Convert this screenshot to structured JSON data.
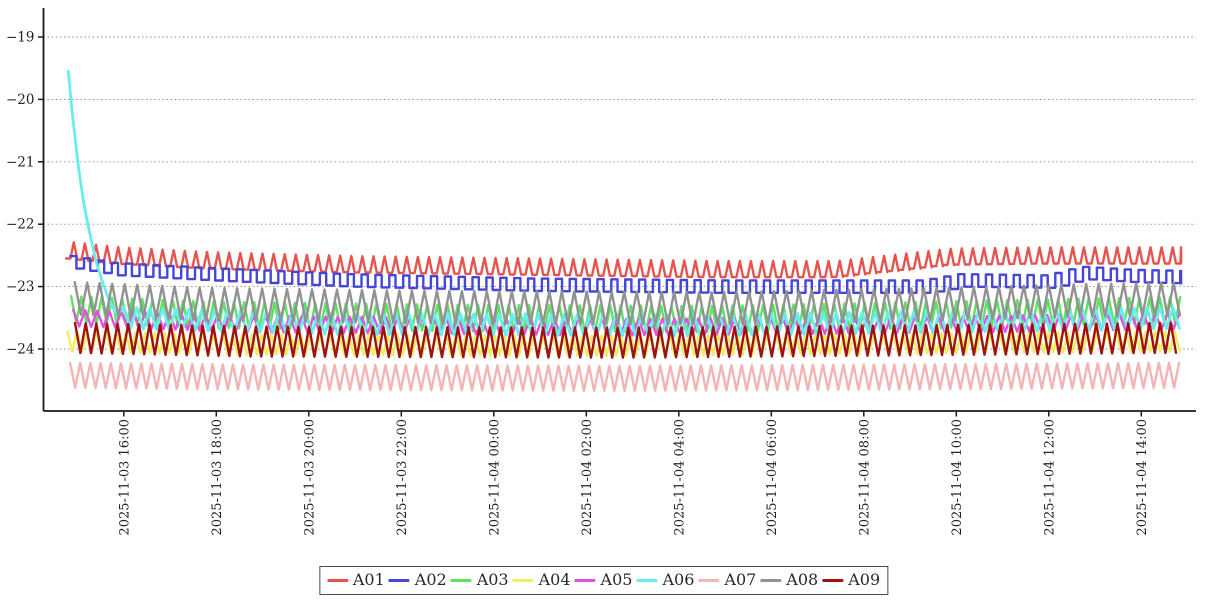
{
  "meta": {
    "background_color": "#ffffff",
    "axis_color": "#1a1a1a",
    "grid_color": "#8a8a8a",
    "tick_label_color": "#222222",
    "legend_border_color": "#4a4a4a"
  },
  "chart_data": {
    "type": "line",
    "title": "",
    "xlabel": "",
    "ylabel": "",
    "x_axis": {
      "kind": "time",
      "tick_interval_hours": 2,
      "tick_labels": [
        "2025-11-03 16:00",
        "2025-11-03 18:00",
        "2025-11-03 20:00",
        "2025-11-03 22:00",
        "2025-11-04 00:00",
        "2025-11-04 02:00",
        "2025-11-04 04:00",
        "2025-11-04 06:00",
        "2025-11-04 08:00",
        "2025-11-04 10:00",
        "2025-11-04 12:00",
        "2025-11-04 14:00"
      ],
      "data_start_offset_hours": 0.0,
      "first_tick_offset_hours": 1.25,
      "data_span_hours": 24.11
    },
    "y_axis": {
      "tick_values": [
        -19,
        -20,
        -21,
        -22,
        -23,
        -24
      ],
      "tick_labels": [
        "−19",
        "−20",
        "−21",
        "−22",
        "−23",
        "−24"
      ],
      "displayed_range": [
        -25.0,
        -18.55
      ],
      "gridlines": "dashed"
    },
    "legend": {
      "position": "bottom-center"
    },
    "series": [
      {
        "name": "A01",
        "color": "#e65450",
        "waveform": "spike",
        "amplitude": 0.13,
        "period_hours": 0.24,
        "phase": 0.0,
        "trend": [
          [
            0,
            -22.42
          ],
          [
            1,
            -22.5
          ],
          [
            3,
            -22.58
          ],
          [
            6,
            -22.64
          ],
          [
            10,
            -22.68
          ],
          [
            14,
            -22.72
          ],
          [
            16.5,
            -22.72
          ],
          [
            18,
            -22.6
          ],
          [
            19,
            -22.52
          ],
          [
            21,
            -22.5
          ],
          [
            24.11,
            -22.5
          ]
        ]
      },
      {
        "name": "A02",
        "color": "#4646d8",
        "waveform": "square",
        "amplitude": 0.1,
        "period_hours": 0.3,
        "phase": 0.3,
        "trend": [
          [
            0,
            -22.6
          ],
          [
            1,
            -22.72
          ],
          [
            3,
            -22.8
          ],
          [
            6,
            -22.9
          ],
          [
            10,
            -22.97
          ],
          [
            14,
            -23.0
          ],
          [
            18.5,
            -23.0
          ],
          [
            19.3,
            -22.9
          ],
          [
            21.2,
            -22.92
          ],
          [
            21.9,
            -22.78
          ],
          [
            23,
            -22.83
          ],
          [
            24.11,
            -22.85
          ]
        ]
      },
      {
        "name": "A03",
        "color": "#5ce460",
        "waveform": "triangle",
        "amplitude": 0.21,
        "period_hours": 0.22,
        "phase": 0.5,
        "trend": [
          [
            0,
            -23.36
          ],
          [
            3,
            -23.45
          ],
          [
            8,
            -23.5
          ],
          [
            14,
            -23.52
          ],
          [
            19,
            -23.45
          ],
          [
            22,
            -23.4
          ],
          [
            24.11,
            -23.38
          ]
        ]
      },
      {
        "name": "A04",
        "color": "#f1ee5b",
        "waveform": "triangle",
        "amplitude": 0.16,
        "period_hours": 0.21,
        "phase": 0.15,
        "trend": [
          [
            0,
            -23.88
          ],
          [
            4,
            -23.93
          ],
          [
            12,
            -23.95
          ],
          [
            20,
            -23.9
          ],
          [
            24.11,
            -23.88
          ]
        ]
      },
      {
        "name": "A05",
        "color": "#e052e0",
        "waveform": "triangle",
        "amplitude": 0.13,
        "period_hours": 0.26,
        "phase": 0.6,
        "trend": [
          [
            0,
            -23.5
          ],
          [
            4,
            -23.6
          ],
          [
            12,
            -23.65
          ],
          [
            20,
            -23.6
          ],
          [
            24.11,
            -23.55
          ]
        ]
      },
      {
        "name": "A06",
        "color": "#67eded",
        "waveform": "triangle",
        "amplitude": 0.17,
        "period_hours": 0.28,
        "phase": 0.25,
        "initial_descent": [
          [
            0.05,
            -19.55
          ],
          [
            0.12,
            -20.1
          ],
          [
            0.2,
            -20.65
          ],
          [
            0.28,
            -21.15
          ],
          [
            0.38,
            -21.65
          ],
          [
            0.5,
            -22.1
          ],
          [
            0.65,
            -22.6
          ],
          [
            0.8,
            -22.95
          ],
          [
            0.95,
            -23.25
          ],
          [
            1.1,
            -23.45
          ]
        ],
        "trend": [
          [
            1.1,
            -23.5
          ],
          [
            6,
            -23.6
          ],
          [
            14,
            -23.62
          ],
          [
            20,
            -23.55
          ],
          [
            24.11,
            -23.5
          ]
        ]
      },
      {
        "name": "A07",
        "color": "#f3b5b3",
        "waveform": "triangle",
        "amplitude": 0.2,
        "period_hours": 0.22,
        "phase": 0.4,
        "trend": [
          [
            0,
            -24.42
          ],
          [
            4,
            -24.45
          ],
          [
            12,
            -24.47
          ],
          [
            20,
            -24.44
          ],
          [
            24.11,
            -24.42
          ]
        ]
      },
      {
        "name": "A08",
        "color": "#929292",
        "waveform": "triangle",
        "amplitude": 0.26,
        "period_hours": 0.27,
        "phase": 0.7,
        "trend": [
          [
            0,
            -23.18
          ],
          [
            3,
            -23.28
          ],
          [
            8,
            -23.33
          ],
          [
            14,
            -23.35
          ],
          [
            19,
            -23.28
          ],
          [
            22,
            -23.22
          ],
          [
            24.11,
            -23.2
          ]
        ]
      },
      {
        "name": "A09",
        "color": "#a01212",
        "waveform": "triangle",
        "amplitude": 0.24,
        "period_hours": 0.23,
        "phase": 0.85,
        "trend": [
          [
            0,
            -23.82
          ],
          [
            4,
            -23.88
          ],
          [
            12,
            -23.9
          ],
          [
            20,
            -23.85
          ],
          [
            24.11,
            -23.82
          ]
        ]
      }
    ]
  }
}
